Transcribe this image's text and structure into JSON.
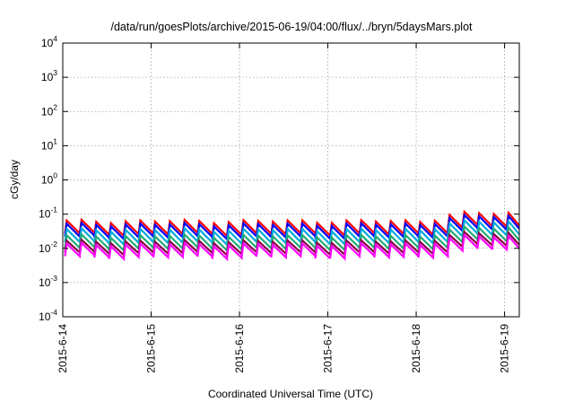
{
  "chart_data": {
    "type": "line",
    "title": "/data/run/goesPlots/archive/2015-06-19/04:00/flux/../bryn/5daysMars.plot",
    "xlabel": "Coordinated Universal Time (UTC)",
    "ylabel": "cGy/day",
    "y_scale": "log",
    "ylim": [
      0.0001,
      10000
    ],
    "y_ticks": [
      {
        "base": "10",
        "exp": "-4",
        "value": 0.0001
      },
      {
        "base": "10",
        "exp": "-3",
        "value": 0.001
      },
      {
        "base": "10",
        "exp": "-2",
        "value": 0.01
      },
      {
        "base": "10",
        "exp": "-1",
        "value": 0.1
      },
      {
        "base": "10",
        "exp": "0",
        "value": 1
      },
      {
        "base": "10",
        "exp": "1",
        "value": 10
      },
      {
        "base": "10",
        "exp": "2",
        "value": 100
      },
      {
        "base": "10",
        "exp": "3",
        "value": 1000
      },
      {
        "base": "10",
        "exp": "4",
        "value": 10000
      }
    ],
    "xlim": [
      "2015-06-14 00:00",
      "2015-06-19 04:00"
    ],
    "x_ticks": [
      "2015-6-14",
      "2015-6-15",
      "2015-6-16",
      "2015-6-17",
      "2015-6-18",
      "2015-6-19"
    ],
    "grid": true,
    "legend": "none",
    "cycle_hours": 4,
    "series": [
      {
        "color": "#ff0000",
        "peak_base": 0.062,
        "trough_base": 0.026
      },
      {
        "color": "#0000ff",
        "peak_base": 0.05,
        "trough_base": 0.021
      },
      {
        "color": "#00aadd",
        "peak_base": 0.035,
        "trough_base": 0.0145
      },
      {
        "color": "#22aa77",
        "peak_base": 0.023,
        "trough_base": 0.0098
      },
      {
        "color": "#880044",
        "peak_base": 0.016,
        "trough_base": 0.0072
      },
      {
        "color": "#ff00ff",
        "peak_base": 0.013,
        "trough_base": 0.0056
      }
    ]
  }
}
